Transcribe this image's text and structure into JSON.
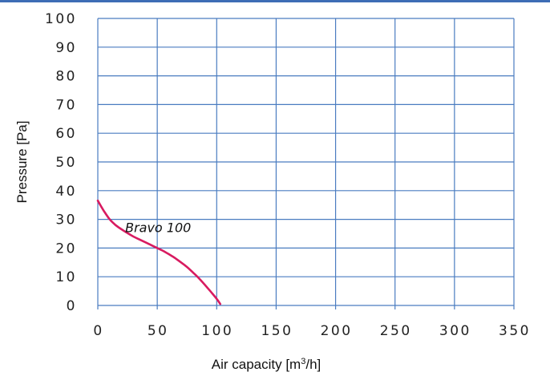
{
  "chart_data": {
    "type": "line",
    "xlabel_parts": [
      "Air capacity [m",
      "3",
      "/h]"
    ],
    "ylabel": "Pressure [Pa]",
    "xlim": [
      0,
      350
    ],
    "ylim": [
      0,
      100
    ],
    "x_ticks": [
      "0",
      "50",
      "100",
      "150",
      "200",
      "250",
      "300",
      "350"
    ],
    "y_ticks": [
      "0",
      "10",
      "20",
      "30",
      "40",
      "50",
      "60",
      "70",
      "80",
      "90",
      "100"
    ],
    "grid": true,
    "series": [
      {
        "name": "Bravo 100",
        "color": "#d81b60",
        "points": [
          [
            0,
            36.5
          ],
          [
            5,
            33
          ],
          [
            10,
            30
          ],
          [
            15,
            28
          ],
          [
            20,
            26.5
          ],
          [
            25,
            25.2
          ],
          [
            30,
            24
          ],
          [
            35,
            23
          ],
          [
            40,
            22
          ],
          [
            45,
            21
          ],
          [
            50,
            20
          ],
          [
            55,
            19
          ],
          [
            60,
            17.8
          ],
          [
            65,
            16.5
          ],
          [
            70,
            15
          ],
          [
            75,
            13.4
          ],
          [
            80,
            11.5
          ],
          [
            85,
            9.5
          ],
          [
            90,
            7.2
          ],
          [
            95,
            4.8
          ],
          [
            100,
            2.3
          ],
          [
            103,
            0.5
          ]
        ]
      }
    ],
    "colors": {
      "grid": "#4a7cc0",
      "top_rule": "#3e6db5",
      "curve": "#d81b60"
    }
  }
}
